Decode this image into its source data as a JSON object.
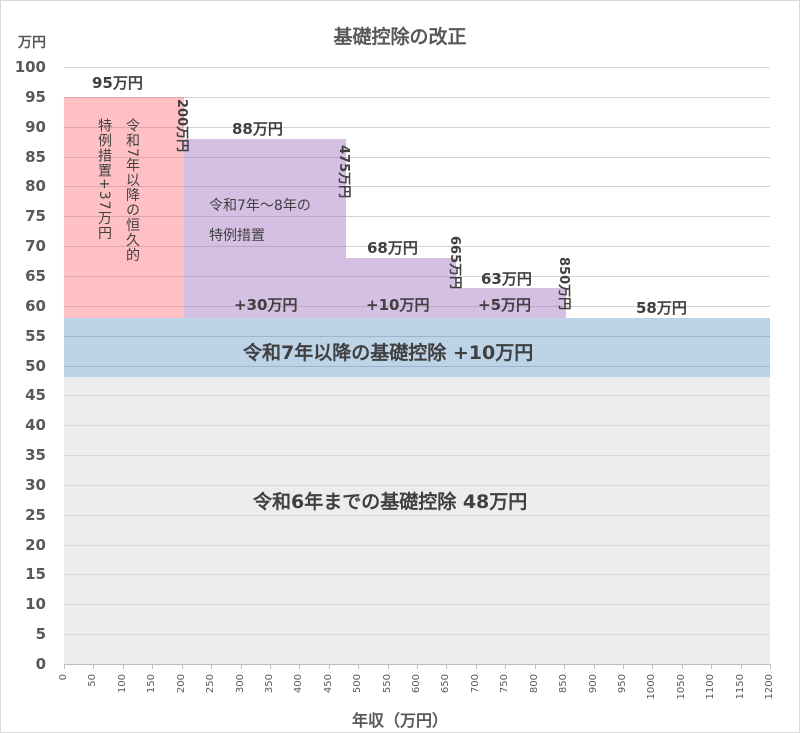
{
  "chart_data": {
    "type": "area",
    "title": "基礎控除の改正",
    "xlabel": "年収（万円）",
    "ylabel": "万円",
    "xlim": [
      0,
      1200
    ],
    "ylim": [
      0,
      100
    ],
    "grid": true,
    "x_ticks": [
      "0",
      "50",
      "100",
      "150",
      "200",
      "250",
      "300",
      "350",
      "400",
      "450",
      "500",
      "550",
      "600",
      "650",
      "700",
      "750",
      "800",
      "850",
      "900",
      "950",
      "1000",
      "1050",
      "1100",
      "1150",
      "1200"
    ],
    "y_ticks": [
      "100",
      "95",
      "90",
      "85",
      "80",
      "75",
      "70",
      "65",
      "60",
      "55",
      "50",
      "45",
      "40",
      "35",
      "30",
      "25",
      "20",
      "15",
      "10",
      "5",
      "0"
    ],
    "series": [
      {
        "name": "令和6年までの基礎控除 48万円",
        "color": "#ededed",
        "segments": [
          {
            "x0": 0,
            "x1": 1200,
            "y0": 0,
            "y1": 48
          }
        ]
      },
      {
        "name": "令和7年以降の基礎控除 +10万円",
        "color": "#bdd3e8",
        "segments": [
          {
            "x0": 0,
            "x1": 1200,
            "y0": 48,
            "y1": 58
          }
        ]
      },
      {
        "name": "令和7年以降の恒久的特例措置 +37万円",
        "color": "#ffc0c4",
        "segments": [
          {
            "x0": 0,
            "x1": 200,
            "y0": 58,
            "y1": 95
          }
        ]
      },
      {
        "name": "令和7年〜8年の特例措置",
        "color": "#d5bfe3",
        "segments": [
          {
            "x0": 200,
            "x1": 475,
            "y0": 58,
            "y1": 88,
            "add": "+30万円"
          },
          {
            "x0": 475,
            "x1": 665,
            "y0": 58,
            "y1": 68,
            "add": "+10万円"
          },
          {
            "x0": 665,
            "x1": 850,
            "y0": 58,
            "y1": 63,
            "add": "+5万円"
          }
        ]
      }
    ],
    "totals": [
      {
        "range": "0-200",
        "value": 95,
        "label": "95万円"
      },
      {
        "range": "200-475",
        "value": 88,
        "label": "88万円"
      },
      {
        "range": "475-665",
        "value": 68,
        "label": "68万円"
      },
      {
        "range": "665-850",
        "value": 63,
        "label": "63万円"
      },
      {
        "range": "850-",
        "value": 58,
        "label": "58万円"
      }
    ],
    "thresholds": [
      "200万円",
      "475万円",
      "665万円",
      "850万円"
    ]
  },
  "labels": {
    "title": "基礎控除の改正",
    "y_unit": "万円",
    "x_axis": "年収（万円）",
    "total_95": "95万円",
    "total_88": "88万円",
    "total_68": "68万円",
    "total_63": "63万円",
    "total_58": "58万円",
    "th_200": "200万円",
    "th_475": "475万円",
    "th_665": "665万円",
    "th_850": "850万円",
    "add_30": "+30万円",
    "add_10": "+10万円",
    "add_5": "+5万円",
    "pink_col1": "特例措置+37万円",
    "pink_col2": "令和7年以降の恒久的",
    "purple_line1": "令和7年〜8年の",
    "purple_line2": "特例措置",
    "blue_band": "令和7年以降の基礎控除 +10万円",
    "gray_band": "令和6年までの基礎控除 48万円"
  }
}
